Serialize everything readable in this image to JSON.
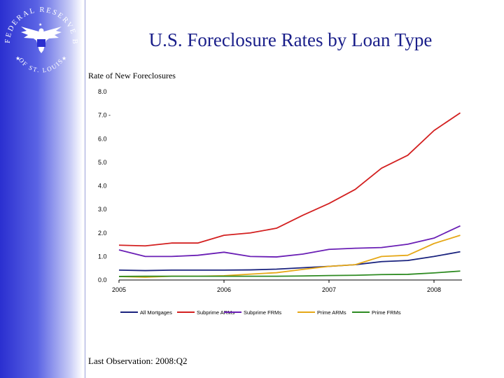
{
  "logo": {
    "arc_top": "FEDERAL RESERVE BANK",
    "arc_bottom": "OF ST. LOUIS"
  },
  "title": "U.S. Foreclosure Rates by Loan Type",
  "footer": "Last Observation:  2008:Q2",
  "colors": {
    "sidebar": "#3b40d6",
    "title": "#1a1f8a"
  },
  "chart_data": {
    "type": "line",
    "ylabel": "Rate of New Foreclosures",
    "ylim": [
      0,
      8
    ],
    "yticks": [
      "0.0",
      "1.0",
      "2.0",
      "3.0",
      "4.0",
      "5.0",
      "6.0",
      "7.0",
      "8.0"
    ],
    "xticks": [
      "2005",
      "2006",
      "2007",
      "2008"
    ],
    "x": [
      "2005:Q1",
      "2005:Q2",
      "2005:Q3",
      "2005:Q4",
      "2006:Q1",
      "2006:Q2",
      "2006:Q3",
      "2006:Q4",
      "2007:Q1",
      "2007:Q2",
      "2007:Q3",
      "2007:Q4",
      "2008:Q1",
      "2008:Q2"
    ],
    "legend_position": "bottom",
    "grid": false,
    "series": [
      {
        "name": "All Mortgages",
        "color": "#1a237e",
        "values": [
          0.42,
          0.4,
          0.42,
          0.42,
          0.42,
          0.43,
          0.46,
          0.52,
          0.58,
          0.65,
          0.78,
          0.83,
          1.0,
          1.2
        ]
      },
      {
        "name": "Subprime ARMs",
        "color": "#d32020",
        "values": [
          1.48,
          1.45,
          1.57,
          1.57,
          1.9,
          2.0,
          2.2,
          2.75,
          3.25,
          3.85,
          4.75,
          5.3,
          6.35,
          7.1
        ]
      },
      {
        "name": "Subprime FRMs",
        "color": "#6a1fb5",
        "values": [
          1.28,
          1.0,
          1.0,
          1.05,
          1.18,
          1.0,
          0.98,
          1.1,
          1.3,
          1.35,
          1.38,
          1.52,
          1.78,
          2.3
        ]
      },
      {
        "name": "Prime ARMs",
        "color": "#e6a817",
        "values": [
          0.15,
          0.12,
          0.16,
          0.16,
          0.18,
          0.25,
          0.31,
          0.45,
          0.58,
          0.65,
          1.0,
          1.05,
          1.55,
          1.9
        ]
      },
      {
        "name": "Prime FRMs",
        "color": "#2e8b22",
        "values": [
          0.15,
          0.16,
          0.16,
          0.16,
          0.16,
          0.16,
          0.16,
          0.17,
          0.19,
          0.2,
          0.23,
          0.24,
          0.3,
          0.38
        ]
      }
    ]
  }
}
